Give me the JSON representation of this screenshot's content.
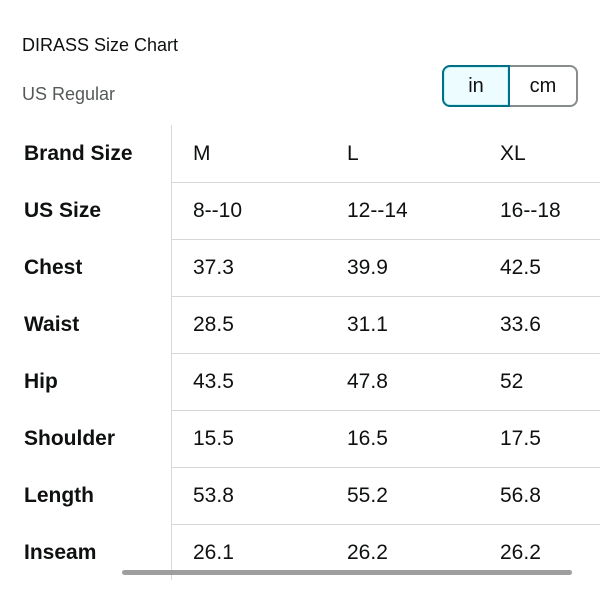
{
  "header": {
    "title": "DIRASS Size Chart",
    "subtitle": "US Regular"
  },
  "units": {
    "options": [
      "in",
      "cm"
    ],
    "selected": "in"
  },
  "table": {
    "rows": [
      {
        "label": "Brand Size",
        "values": [
          "M",
          "L",
          "XL"
        ]
      },
      {
        "label": "US Size",
        "values": [
          "8--10",
          "12--14",
          "16--18"
        ]
      },
      {
        "label": "Chest",
        "values": [
          "37.3",
          "39.9",
          "42.5"
        ]
      },
      {
        "label": "Waist",
        "values": [
          "28.5",
          "31.1",
          "33.6"
        ]
      },
      {
        "label": "Hip",
        "values": [
          "43.5",
          "47.8",
          "52"
        ]
      },
      {
        "label": "Shoulder",
        "values": [
          "15.5",
          "16.5",
          "17.5"
        ]
      },
      {
        "label": "Length",
        "values": [
          "53.8",
          "55.2",
          "56.8"
        ]
      },
      {
        "label": "Inseam",
        "values": [
          "26.1",
          "26.2",
          "26.2"
        ]
      }
    ]
  },
  "colors": {
    "selected_border": "#007185",
    "selected_fill": "#edfdff",
    "divider": "#d5d9d9"
  }
}
